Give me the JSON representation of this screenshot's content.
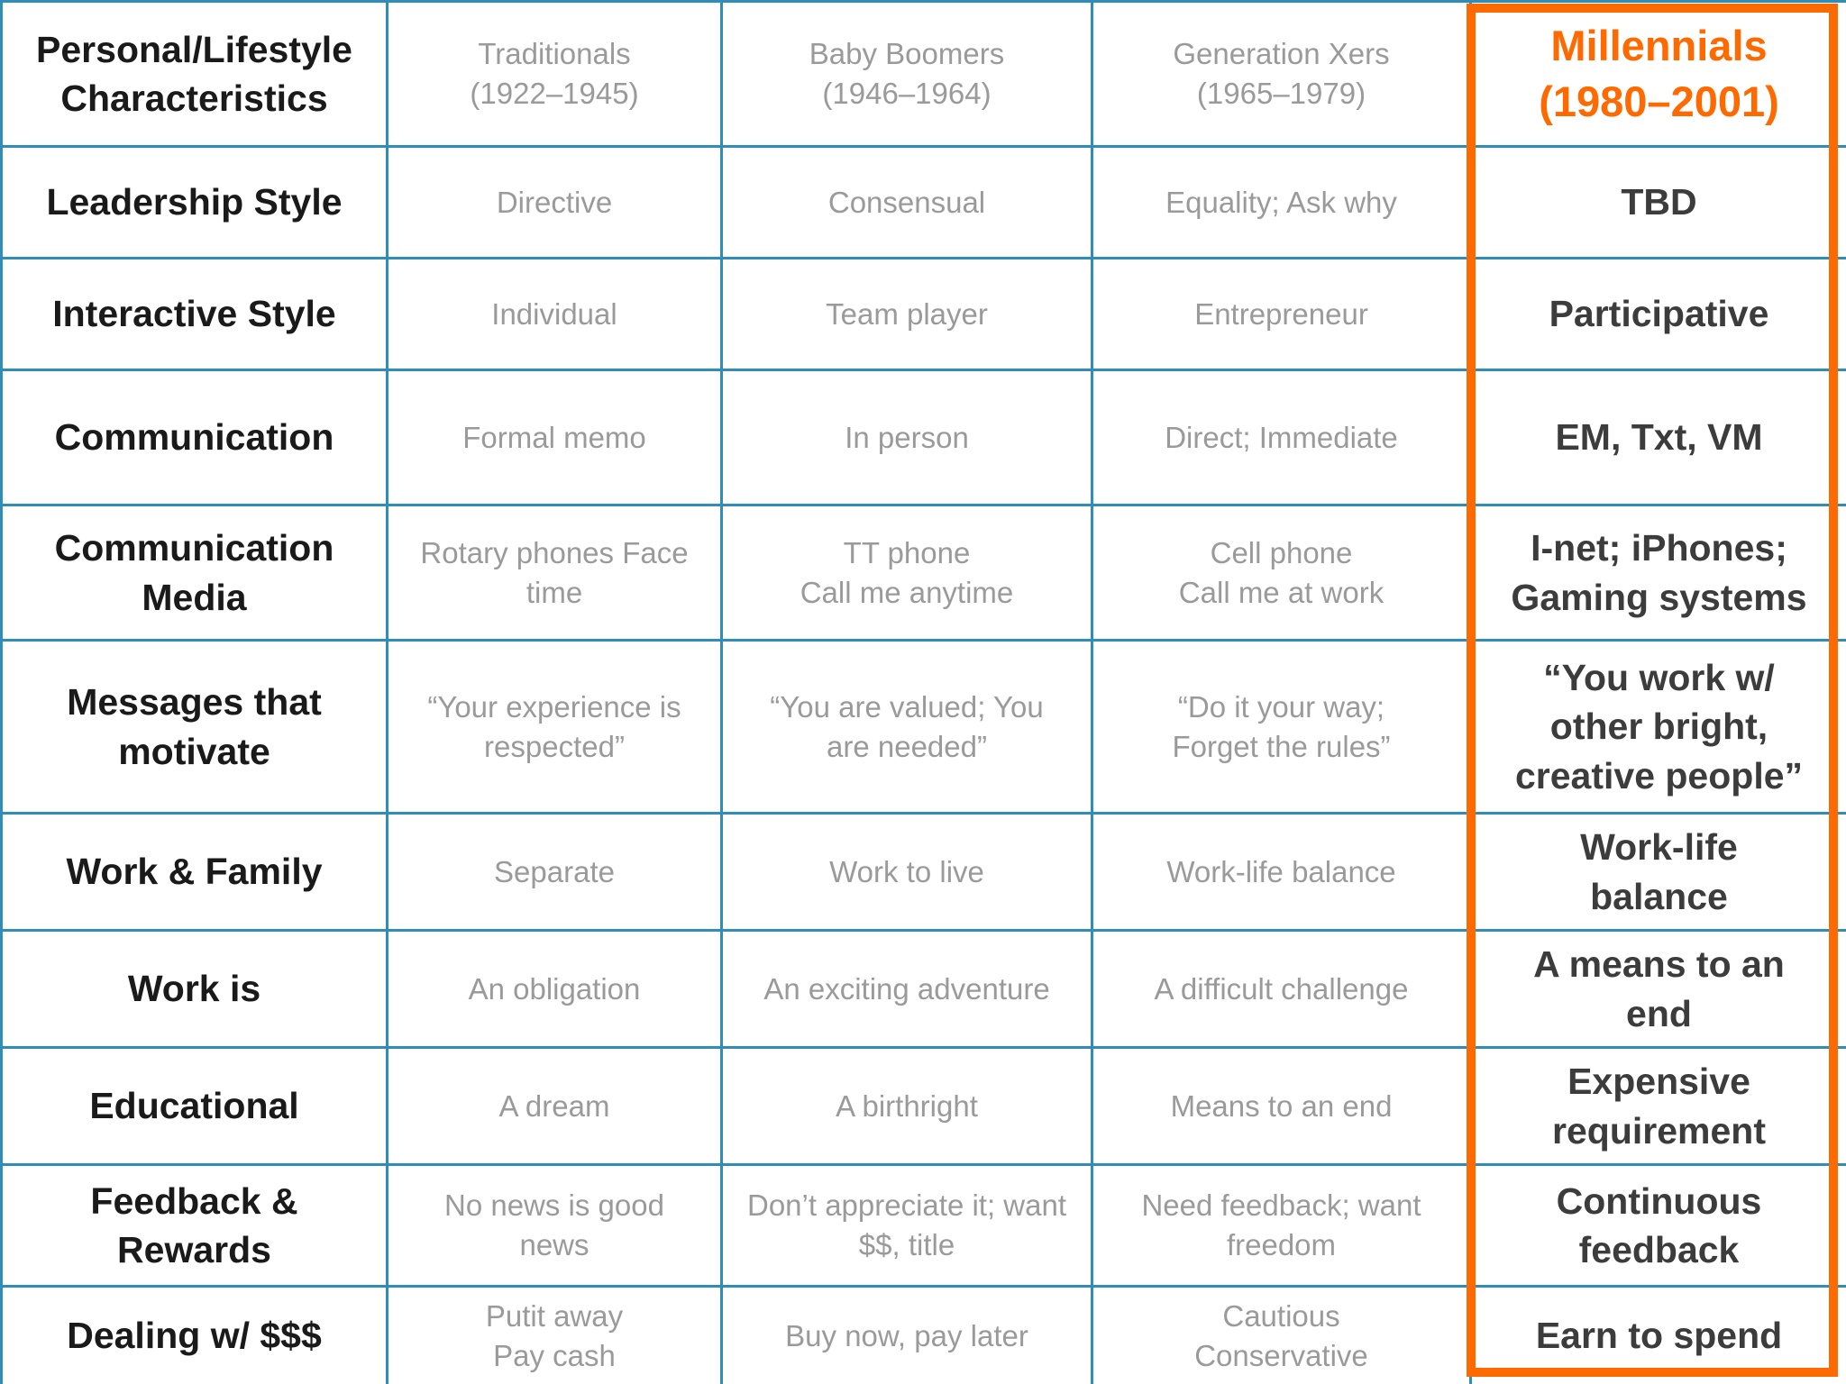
{
  "colors": {
    "grid_line": "#2f8db8",
    "highlight": "#ff6a00",
    "label_text": "#1a1a1a",
    "generation_text": "#9a9a9a",
    "millennial_text": "#3c3c3c"
  },
  "header": {
    "label": [
      "Personal/Lifestyle",
      "Characteristics"
    ],
    "traditionals": [
      "Traditionals",
      "(1922–1945)"
    ],
    "boomers": [
      "Baby Boomers",
      "(1946–1964)"
    ],
    "genx": [
      "Generation Xers",
      "(1965–1979)"
    ],
    "millennials": [
      "Millennials",
      "(1980–2001)"
    ]
  },
  "rows": [
    {
      "label": [
        "Leadership Style"
      ],
      "traditionals": [
        "Directive"
      ],
      "boomers": [
        "Consensual"
      ],
      "genx": [
        "Equality; Ask why"
      ],
      "millennials": [
        "TBD"
      ]
    },
    {
      "label": [
        "Interactive Style"
      ],
      "traditionals": [
        "Individual"
      ],
      "boomers": [
        "Team player"
      ],
      "genx": [
        "Entrepreneur"
      ],
      "millennials": [
        "Participative"
      ]
    },
    {
      "label": [
        "Communication"
      ],
      "traditionals": [
        "Formal memo"
      ],
      "boomers": [
        "In person"
      ],
      "genx": [
        "Direct; Immediate"
      ],
      "millennials": [
        "EM, Txt, VM"
      ]
    },
    {
      "label": [
        "Communication",
        "Media"
      ],
      "traditionals": [
        "Rotary phones Face",
        "time"
      ],
      "boomers": [
        "TT phone",
        "Call me anytime"
      ],
      "genx": [
        "Cell phone",
        "Call me at work"
      ],
      "millennials": [
        "I-net; iPhones;",
        "Gaming systems"
      ]
    },
    {
      "label": [
        "Messages that",
        "motivate"
      ],
      "traditionals": [
        "“Your experience is",
        "respected”"
      ],
      "boomers": [
        "“You are valued; You",
        "are needed”"
      ],
      "genx": [
        "“Do it your way;",
        "Forget the rules”"
      ],
      "millennials": [
        "“You work w/",
        "other bright,",
        "creative people”"
      ]
    },
    {
      "label": [
        "Work & Family"
      ],
      "traditionals": [
        "Separate"
      ],
      "boomers": [
        "Work to live"
      ],
      "genx": [
        "Work-life balance"
      ],
      "millennials": [
        "Work-life",
        "balance"
      ]
    },
    {
      "label": [
        "Work is"
      ],
      "traditionals": [
        "An obligation"
      ],
      "boomers": [
        "An exciting adventure"
      ],
      "genx": [
        "A difficult challenge"
      ],
      "millennials": [
        "A means to an",
        "end"
      ]
    },
    {
      "label": [
        "Educational"
      ],
      "traditionals": [
        "A dream"
      ],
      "boomers": [
        "A birthright"
      ],
      "genx": [
        "Means to an end"
      ],
      "millennials": [
        "Expensive",
        "requirement"
      ]
    },
    {
      "label": [
        "Feedback &",
        "Rewards"
      ],
      "traditionals": [
        "No news is good",
        "news"
      ],
      "boomers": [
        "Don’t appreciate it; want",
        "$$, title"
      ],
      "genx": [
        "Need feedback; want",
        "freedom"
      ],
      "millennials": [
        "Continuous",
        "feedback"
      ]
    },
    {
      "label": [
        "Dealing w/ $$$"
      ],
      "traditionals": [
        "Putit away",
        "Pay cash"
      ],
      "boomers": [
        "Buy now, pay later"
      ],
      "genx": [
        "Cautious",
        "Conservative"
      ],
      "millennials": [
        "Earn to spend"
      ]
    }
  ]
}
